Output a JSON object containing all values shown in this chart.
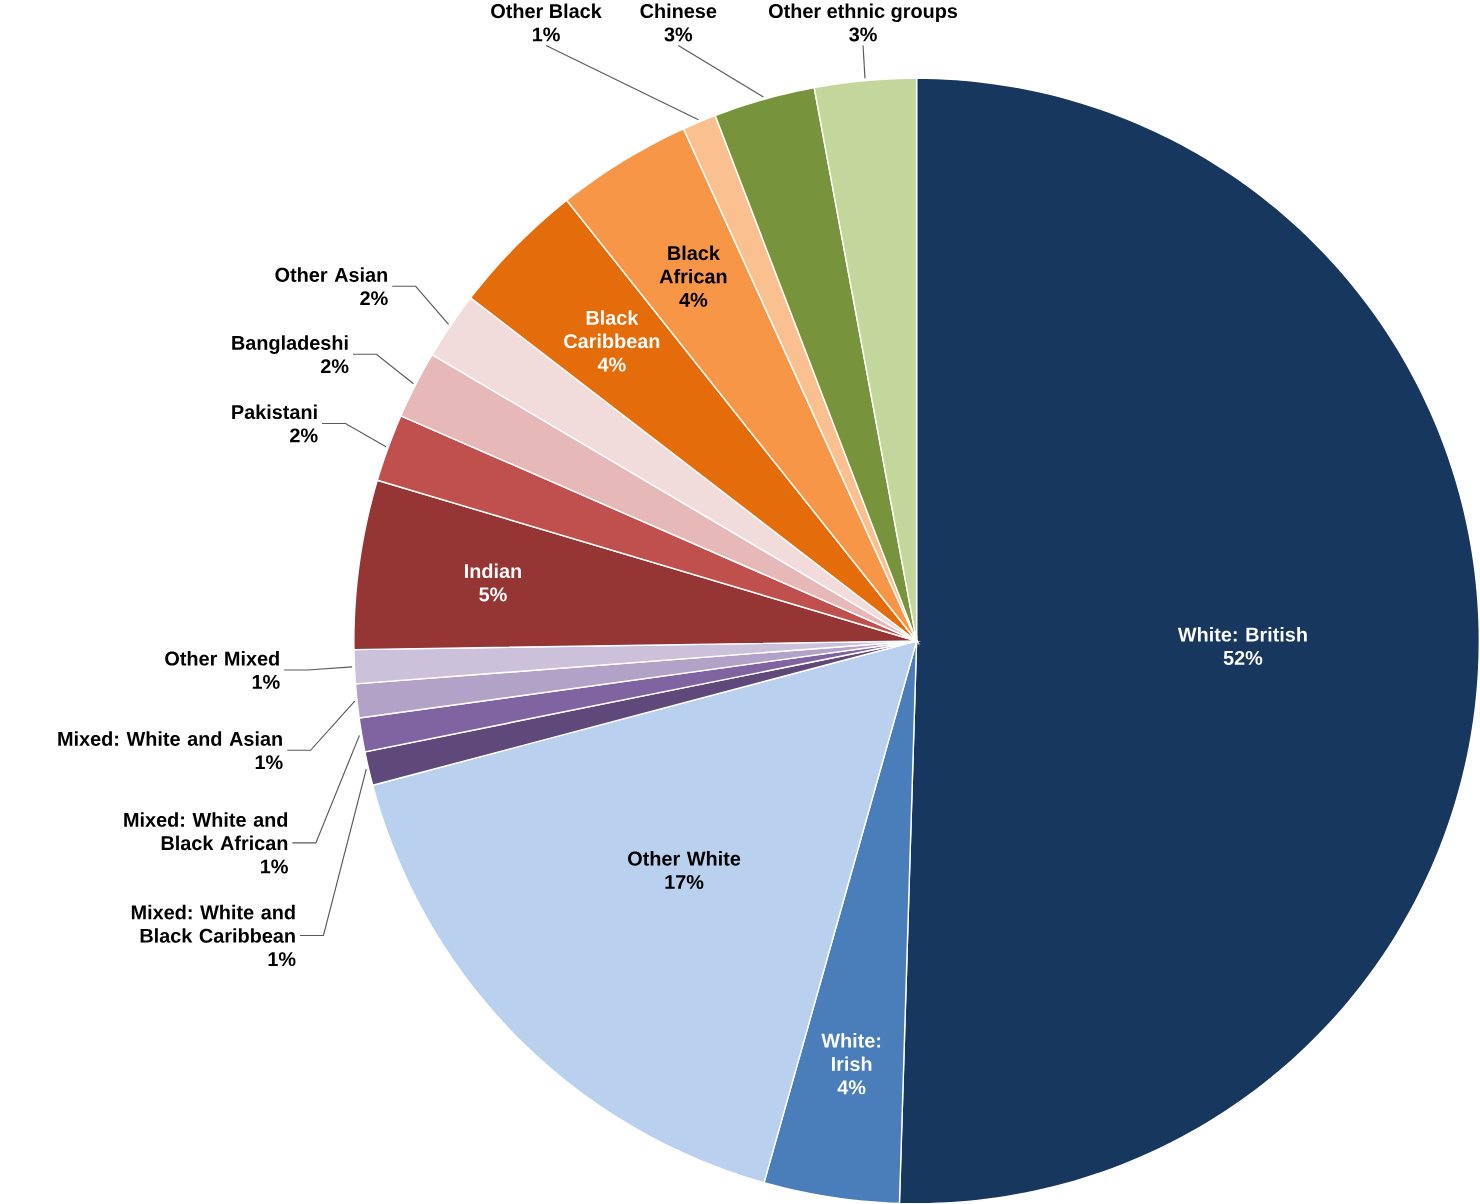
{
  "chart_data": {
    "type": "pie",
    "categories": [
      "White: British",
      "White: Irish",
      "Other White",
      "Mixed: White and Black Caribbean",
      "Mixed: White and Black African",
      "Mixed: White and Asian",
      "Other Mixed",
      "Indian",
      "Pakistani",
      "Bangladeshi",
      "Other Asian",
      "Black Caribbean",
      "Black African",
      "Other Black",
      "Chinese",
      "Other ethnic groups"
    ],
    "values": [
      52,
      4,
      17,
      1,
      1,
      1,
      1,
      5,
      2,
      2,
      2,
      4,
      4,
      1,
      3,
      3
    ],
    "value_labels": [
      "52%",
      "4%",
      "17%",
      "1%",
      "1%",
      "1%",
      "1%",
      "5%",
      "2%",
      "2%",
      "2%",
      "4%",
      "4%",
      "1%",
      "3%",
      "3%"
    ],
    "colors": [
      "#17375e",
      "#4a7ebb",
      "#b9d1ee",
      "#5f497a",
      "#8064a2",
      "#b3a2c7",
      "#ccc1da",
      "#963634",
      "#c0504d",
      "#e6b9b8",
      "#f2dcdb",
      "#e46c0a",
      "#f79646",
      "#fac090",
      "#77933c",
      "#c3d69b"
    ]
  }
}
